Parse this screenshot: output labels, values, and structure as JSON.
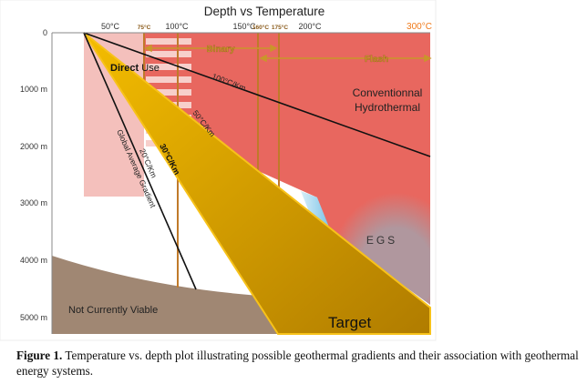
{
  "figure": {
    "title": "Depth vs Temperature",
    "temperature_labels": [
      "50°C",
      "75°C",
      "100°C",
      "150°C",
      "160°C",
      "175°C",
      "200°C",
      "300°C"
    ],
    "depth_labels": [
      "0",
      "1000 m",
      "2000 m",
      "3000 m",
      "4000 m",
      "5000 m"
    ],
    "regions": {
      "direct_use_bold": "Direct",
      "direct_use_rest": " Use",
      "binary": "Binary",
      "flash": "Flash",
      "conventional_line1": "Conventionnal",
      "conventional_line2": "Hydrothermal",
      "egs": "EGS",
      "not_viable": "Not Currently Viable",
      "target": "Target"
    },
    "gradients": {
      "g100": "100°C/Km",
      "g50": "50°C/Km",
      "g30": "30°C/Km",
      "g20": "20°C/Km",
      "global": "Global Average Gradient"
    },
    "colors": {
      "hydrothermal_red": "#e8675f",
      "direct_use_pink": "#f4c0bc",
      "egs_mauve": "#b0979e",
      "target_yellow": "#f0b400",
      "not_viable_brown": "#a08773",
      "temperature_line_orange": "#c07a2a",
      "accent_300": "#f07a1a"
    }
  },
  "caption": {
    "label": "Figure 1.",
    "text": " Temperature vs. depth plot illustrating possible geothermal gradients and their association with geothermal energy systems."
  }
}
